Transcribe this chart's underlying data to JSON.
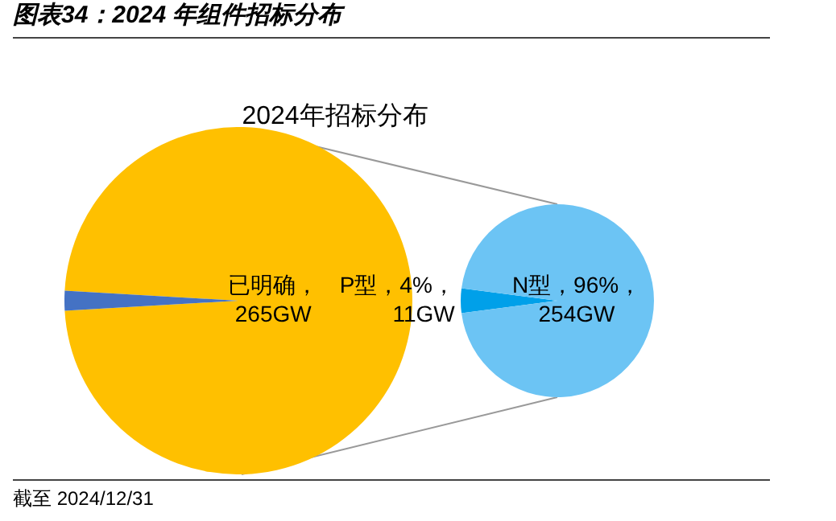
{
  "chart_data": [
    {
      "type": "pie",
      "title": "图表34：2024 年组件招标分布",
      "subtitle": "2024年招标分布",
      "categories": [
        "已明确",
        null
      ],
      "values": [
        265,
        5
      ],
      "colors": [
        "#ffc000",
        "#4472c4"
      ],
      "value_labels": [
        "，265GW",
        null
      ],
      "annotations": [
        "截至 2024/12/31"
      ],
      "legend": false
    },
    {
      "type": "pie",
      "categories": [
        "P型",
        "N型"
      ],
      "values": [
        11,
        254
      ],
      "colors": [
        "#00a0e9",
        "#6cc4f4"
      ],
      "value_labels": [
        "，4%，11GW",
        "，96%，254GW"
      ],
      "legend": false
    }
  ]
}
